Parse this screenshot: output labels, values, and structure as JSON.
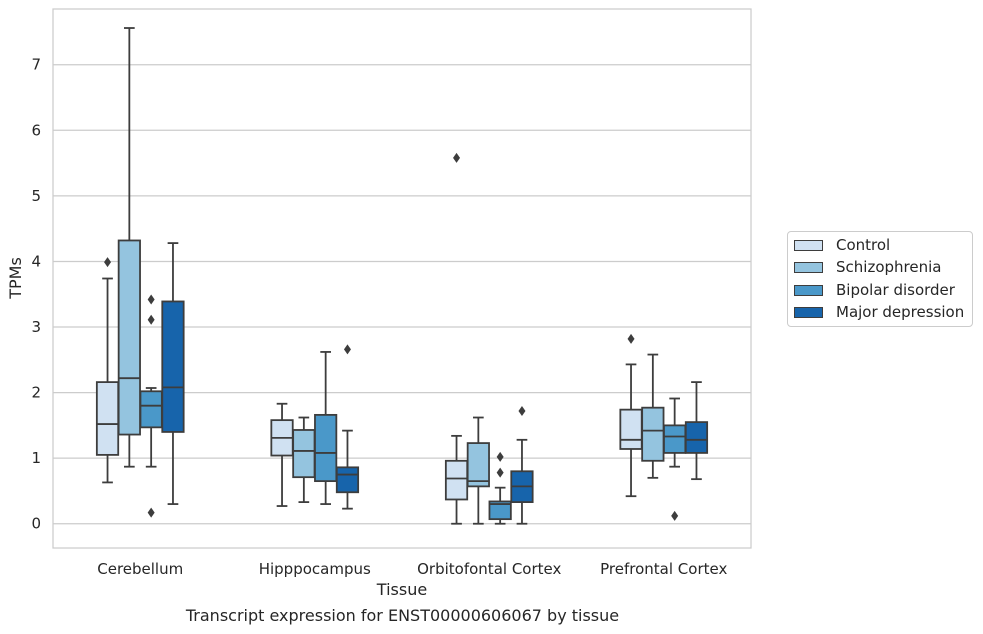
{
  "chart_data": {
    "type": "box",
    "title": "",
    "caption": "Transcript expression for ENST00000606067 by tissue",
    "xlabel": "Tissue",
    "ylabel": "TPMs",
    "ylim": [
      -0.37,
      7.85
    ],
    "yticks": [
      0,
      1,
      2,
      3,
      4,
      5,
      6,
      7
    ],
    "grid": "horizontal",
    "legend_position": "right",
    "categories": [
      "Cerebellum",
      "Hipppocampus",
      "Orbitofontal Cortex",
      "Prefrontal Cortex"
    ],
    "series": [
      {
        "name": "Control",
        "color": "#d0e1f2",
        "boxes": [
          {
            "whislo": 0.63,
            "q1": 1.05,
            "med": 1.52,
            "q3": 2.16,
            "whishi": 3.74,
            "fliers": [
              3.99
            ]
          },
          {
            "whislo": 0.27,
            "q1": 1.04,
            "med": 1.31,
            "q3": 1.58,
            "whishi": 1.83,
            "fliers": []
          },
          {
            "whislo": 0.0,
            "q1": 0.37,
            "med": 0.69,
            "q3": 0.96,
            "whishi": 1.34,
            "fliers": [
              5.58
            ]
          },
          {
            "whislo": 0.42,
            "q1": 1.14,
            "med": 1.28,
            "q3": 1.74,
            "whishi": 2.43,
            "fliers": [
              2.82
            ]
          }
        ]
      },
      {
        "name": "Schizophrenia",
        "color": "#94c4df",
        "boxes": [
          {
            "whislo": 0.87,
            "q1": 1.36,
            "med": 2.22,
            "q3": 4.32,
            "whishi": 7.56,
            "fliers": []
          },
          {
            "whislo": 0.33,
            "q1": 0.71,
            "med": 1.11,
            "q3": 1.43,
            "whishi": 1.62,
            "fliers": []
          },
          {
            "whislo": 0.0,
            "q1": 0.57,
            "med": 0.65,
            "q3": 1.23,
            "whishi": 1.62,
            "fliers": []
          },
          {
            "whislo": 0.7,
            "q1": 0.96,
            "med": 1.42,
            "q3": 1.77,
            "whishi": 2.58,
            "fliers": []
          }
        ]
      },
      {
        "name": "Bipolar disorder",
        "color": "#4a98c9",
        "boxes": [
          {
            "whislo": 0.87,
            "q1": 1.47,
            "med": 1.8,
            "q3": 2.02,
            "whishi": 2.07,
            "fliers": [
              0.17,
              3.11,
              3.42
            ]
          },
          {
            "whislo": 0.3,
            "q1": 0.65,
            "med": 1.08,
            "q3": 1.66,
            "whishi": 2.62,
            "fliers": []
          },
          {
            "whislo": 0.0,
            "q1": 0.07,
            "med": 0.3,
            "q3": 0.34,
            "whishi": 0.55,
            "fliers": [
              0.78,
              1.02
            ]
          },
          {
            "whislo": 0.87,
            "q1": 1.08,
            "med": 1.33,
            "q3": 1.5,
            "whishi": 1.91,
            "fliers": [
              0.12
            ]
          }
        ]
      },
      {
        "name": "Major depression",
        "color": "#1764ab",
        "boxes": [
          {
            "whislo": 0.3,
            "q1": 1.4,
            "med": 2.08,
            "q3": 3.39,
            "whishi": 4.28,
            "fliers": []
          },
          {
            "whislo": 0.23,
            "q1": 0.48,
            "med": 0.75,
            "q3": 0.86,
            "whishi": 1.42,
            "fliers": [
              2.66
            ]
          },
          {
            "whislo": 0.0,
            "q1": 0.33,
            "med": 0.57,
            "q3": 0.8,
            "whishi": 1.28,
            "fliers": [
              1.72
            ]
          },
          {
            "whislo": 0.68,
            "q1": 1.08,
            "med": 1.28,
            "q3": 1.55,
            "whishi": 2.16,
            "fliers": []
          }
        ]
      }
    ]
  }
}
